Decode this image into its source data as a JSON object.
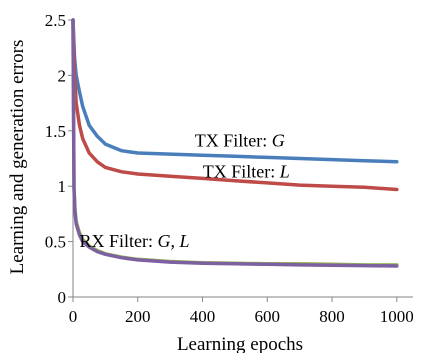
{
  "chart_data": {
    "type": "line",
    "xlabel": "Learning epochs",
    "ylabel": "Learning and generation errors",
    "xlim": [
      0,
      1050
    ],
    "ylim": [
      0,
      2.5
    ],
    "xticks": [
      0,
      200,
      400,
      600,
      800,
      1000
    ],
    "yticks": [
      0,
      0.5,
      1,
      1.5,
      2,
      2.5
    ],
    "x_tick_labels": [
      "0",
      "200",
      "400",
      "600",
      "800",
      "1000"
    ],
    "y_tick_labels": [
      "0",
      "0.5",
      "1",
      "1.5",
      "2",
      "2.5"
    ],
    "grid": false,
    "series": [
      {
        "color": "#4a7ebb",
        "x": [
          0,
          5,
          10,
          20,
          30,
          50,
          75,
          100,
          150,
          200,
          300,
          400,
          500,
          600,
          700,
          800,
          900,
          1000
        ],
        "y": [
          2.5,
          2.15,
          2.0,
          1.85,
          1.72,
          1.55,
          1.45,
          1.38,
          1.32,
          1.3,
          1.29,
          1.28,
          1.27,
          1.26,
          1.25,
          1.24,
          1.23,
          1.22
        ]
      },
      {
        "color": "#be4b48",
        "x": [
          0,
          5,
          10,
          20,
          30,
          50,
          75,
          100,
          150,
          200,
          300,
          400,
          500,
          600,
          700,
          800,
          900,
          1000
        ],
        "y": [
          2.5,
          2.0,
          1.75,
          1.55,
          1.43,
          1.3,
          1.22,
          1.17,
          1.13,
          1.11,
          1.09,
          1.07,
          1.05,
          1.03,
          1.01,
          1.0,
          0.99,
          0.97
        ]
      },
      {
        "color": "#98b954",
        "x": [
          0,
          3,
          6,
          10,
          20,
          30,
          50,
          75,
          100,
          150,
          200,
          300,
          400,
          500,
          600,
          700,
          800,
          900,
          1000
        ],
        "y": [
          2.5,
          1.0,
          0.8,
          0.68,
          0.58,
          0.52,
          0.46,
          0.42,
          0.39,
          0.36,
          0.34,
          0.32,
          0.31,
          0.305,
          0.3,
          0.3,
          0.295,
          0.29,
          0.29
        ]
      },
      {
        "color": "#7d60a0",
        "x": [
          0,
          3,
          6,
          10,
          20,
          30,
          50,
          75,
          100,
          150,
          200,
          300,
          400,
          500,
          600,
          700,
          800,
          900,
          1000
        ],
        "y": [
          2.5,
          0.98,
          0.78,
          0.66,
          0.56,
          0.5,
          0.45,
          0.41,
          0.385,
          0.355,
          0.335,
          0.315,
          0.305,
          0.3,
          0.295,
          0.29,
          0.287,
          0.283,
          0.28
        ]
      }
    ],
    "annotations": [
      {
        "prefix": "TX Filter: ",
        "var": "G",
        "x": 515,
        "y": 1.36
      },
      {
        "prefix": "TX Filter: ",
        "var": "L",
        "x": 535,
        "y": 1.08
      },
      {
        "prefix": "RX Filter: ",
        "var": "G, L",
        "x": 190,
        "y": 0.45
      }
    ]
  }
}
